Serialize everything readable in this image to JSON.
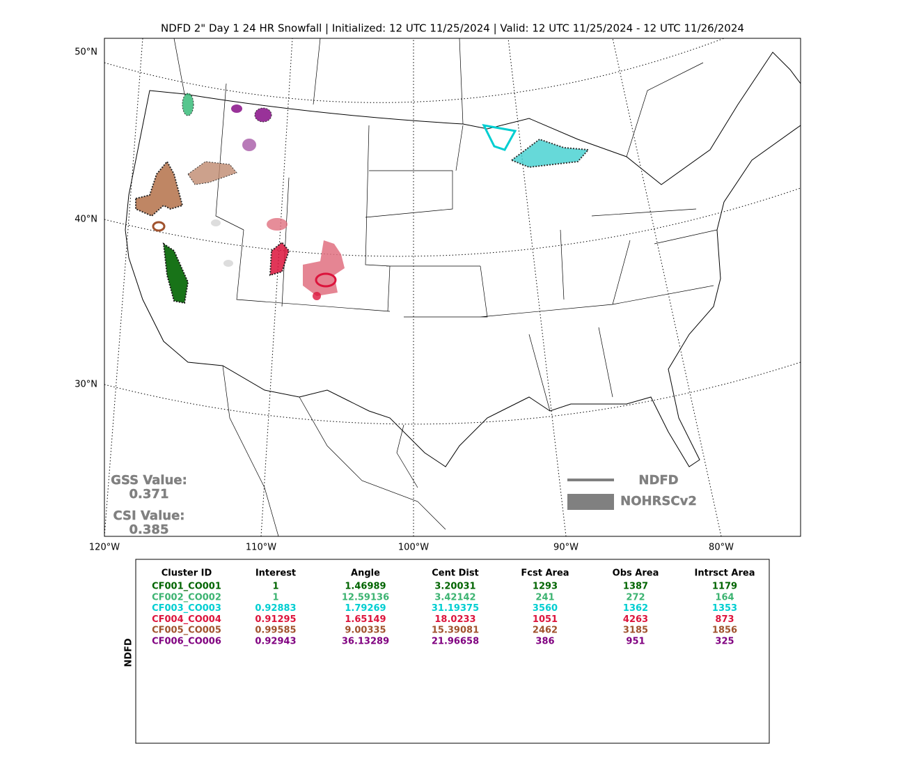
{
  "title": "NDFD 2\" Day 1 24 HR Snowfall | Initialized: 12 UTC 11/25/2024 | Valid: 12 UTC 11/25/2024 - 12 UTC 11/26/2024",
  "map": {
    "lat_labels": [
      "50°N",
      "40°N",
      "30°N"
    ],
    "lon_labels": [
      "120°W",
      "110°W",
      "100°W",
      "90°W",
      "80°W"
    ],
    "gss_label": "GSS Value:",
    "gss_value": "0.371",
    "csi_label": "CSI Value:",
    "csi_value": "0.385",
    "legend": [
      "NDFD",
      "NOHRSCv2"
    ]
  },
  "table": {
    "side_label": "NDFD",
    "headers": [
      "Cluster ID",
      "Interest",
      "Angle",
      "Cent Dist",
      "Fcst Area",
      "Obs Area",
      "Intrsct Area"
    ],
    "rows": [
      {
        "color": "#006400",
        "cells": [
          "CF001_CO001",
          "1",
          "1.46989",
          "3.20031",
          "1293",
          "1387",
          "1179"
        ]
      },
      {
        "color": "#3cb371",
        "cells": [
          "CF002_CO002",
          "1",
          "12.59136",
          "3.42142",
          "241",
          "272",
          "164"
        ]
      },
      {
        "color": "#00ced1",
        "cells": [
          "CF003_CO003",
          "0.92883",
          "1.79269",
          "31.19375",
          "3560",
          "1362",
          "1353"
        ]
      },
      {
        "color": "#dc143c",
        "cells": [
          "CF004_CO004",
          "0.91295",
          "1.65149",
          "18.0233",
          "1051",
          "4263",
          "873"
        ]
      },
      {
        "color": "#a0522d",
        "cells": [
          "CF005_CO005",
          "0.99585",
          "9.00335",
          "15.39081",
          "2462",
          "3185",
          "1856"
        ]
      },
      {
        "color": "#800080",
        "cells": [
          "CF006_CO006",
          "0.92943",
          "36.13289",
          "21.96658",
          "386",
          "951",
          "325"
        ]
      }
    ]
  }
}
